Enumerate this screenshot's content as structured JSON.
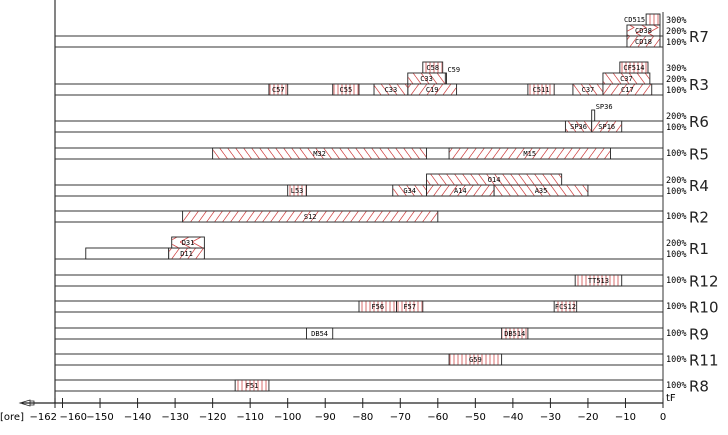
{
  "chart_data": {
    "type": "gantt",
    "x_unit_label": "[ore]",
    "x_end_label": "tF",
    "xlim": [
      -162,
      0
    ],
    "x_ticks": [
      -162,
      -160,
      -150,
      -140,
      -130,
      -120,
      -110,
      -100,
      -90,
      -80,
      -70,
      -60,
      -50,
      -40,
      -30,
      -20,
      -10,
      0
    ],
    "hatch_color": "#d04848",
    "rows": [
      {
        "name": "R7",
        "levels": [
          "100%",
          "200%",
          "300%"
        ]
      },
      {
        "name": "R3",
        "levels": [
          "100%",
          "200%",
          "300%"
        ]
      },
      {
        "name": "R6",
        "levels": [
          "100%",
          "200%"
        ]
      },
      {
        "name": "R5",
        "levels": [
          "100%"
        ]
      },
      {
        "name": "R4",
        "levels": [
          "100%",
          "200%"
        ]
      },
      {
        "name": "R2",
        "levels": [
          "100%"
        ]
      },
      {
        "name": "R1",
        "levels": [
          "100%",
          "200%"
        ]
      },
      {
        "name": "R12",
        "levels": [
          "100%"
        ]
      },
      {
        "name": "R10",
        "levels": [
          "100%"
        ]
      },
      {
        "name": "R9",
        "levels": [
          "100%"
        ]
      },
      {
        "name": "R11",
        "levels": [
          "100%"
        ]
      },
      {
        "name": "R8",
        "levels": [
          "100%"
        ]
      }
    ],
    "bars": [
      {
        "row": "R7",
        "level": 3,
        "start": -4.5,
        "end": -0.8,
        "label": "CD515",
        "hatch": "vertical",
        "label_outside": true
      },
      {
        "row": "R7",
        "level": 2,
        "start": -9.6,
        "end": -0.8,
        "label": "CD38",
        "hatch": "chevron"
      },
      {
        "row": "R7",
        "level": 1,
        "start": -9.6,
        "end": -0.8,
        "label": "CD18",
        "hatch": "diag-up"
      },
      {
        "row": "R3",
        "level": 3,
        "start": -64,
        "end": -58.7,
        "label": "C58",
        "hatch": "vertical"
      },
      {
        "row": "R3",
        "level": 2,
        "start": -58.3,
        "end": -57.7,
        "label": "C59",
        "hatch": "none",
        "label_outside": true
      },
      {
        "row": "R3",
        "level": 2,
        "start": -68,
        "end": -58,
        "label": "C33",
        "hatch": "diag-down"
      },
      {
        "row": "R3",
        "level": 1,
        "start": -68,
        "end": -55,
        "label": "C19",
        "hatch": "diag-up"
      },
      {
        "row": "R3",
        "level": 1,
        "start": -77,
        "end": -68,
        "label": "C33",
        "hatch": "diag-down"
      },
      {
        "row": "R3",
        "level": 1,
        "start": -88,
        "end": -81,
        "label": "C55",
        "hatch": "vertical"
      },
      {
        "row": "R3",
        "level": 1,
        "start": -105,
        "end": -100,
        "label": "C57",
        "hatch": "vertical"
      },
      {
        "row": "R3",
        "level": 1,
        "start": -36,
        "end": -29,
        "label": "C511",
        "hatch": "vertical"
      },
      {
        "row": "R3",
        "level": 1,
        "start": -24,
        "end": -16,
        "label": "C37",
        "hatch": "diag-down"
      },
      {
        "row": "R3",
        "level": 1,
        "start": -16,
        "end": -3,
        "label": "C17",
        "hatch": "diag-up"
      },
      {
        "row": "R3",
        "level": 2,
        "start": -16,
        "end": -3.5,
        "label": "C37",
        "hatch": "diag-down"
      },
      {
        "row": "R3",
        "level": 3,
        "start": -11.5,
        "end": -4,
        "label": "CF514",
        "hatch": "vertical"
      },
      {
        "row": "R6",
        "level": 1,
        "start": -26,
        "end": -19,
        "label": "SP36",
        "hatch": "diag-down"
      },
      {
        "row": "R6",
        "level": 1,
        "start": -19,
        "end": -11,
        "label": "SP16",
        "hatch": "diag-up"
      },
      {
        "row": "R6",
        "level": 2,
        "start": -19,
        "end": -18.2,
        "label": "SP36",
        "hatch": "none",
        "label_outside": true
      },
      {
        "row": "R5",
        "level": 1,
        "start": -120,
        "end": -63,
        "label": "M32",
        "hatch": "diag-down"
      },
      {
        "row": "R5",
        "level": 1,
        "start": -57,
        "end": -14,
        "label": "M15",
        "hatch": "diag-up"
      },
      {
        "row": "R4",
        "level": 1,
        "start": -100,
        "end": -95,
        "label": "L53",
        "hatch": "vertical"
      },
      {
        "row": "R4",
        "level": 1,
        "start": -72,
        "end": -63,
        "label": "G34",
        "hatch": "diag-down"
      },
      {
        "row": "R4",
        "level": 1,
        "start": -63,
        "end": -45,
        "label": "A14",
        "hatch": "diag-up"
      },
      {
        "row": "R4",
        "level": 1,
        "start": -45,
        "end": -20,
        "label": "A35",
        "hatch": "diag-down"
      },
      {
        "row": "R4",
        "level": 2,
        "start": -63,
        "end": -27,
        "label": "O14",
        "hatch": "diag-down"
      },
      {
        "row": "R2",
        "level": 1,
        "start": -128,
        "end": -60,
        "label": "S12",
        "hatch": "diag-up"
      },
      {
        "row": "R1",
        "level": 1,
        "start": -153.8,
        "end": -131.7,
        "label": "",
        "hatch": "none"
      },
      {
        "row": "R1",
        "level": 1,
        "start": -131.7,
        "end": -122.2,
        "label": "D11",
        "hatch": "diag-up"
      },
      {
        "row": "R1",
        "level": 2,
        "start": -130.9,
        "end": -122.2,
        "label": "D31",
        "hatch": "chevron"
      },
      {
        "row": "R12",
        "level": 1,
        "start": -23.4,
        "end": -11,
        "label": "TT513",
        "hatch": "vertical"
      },
      {
        "row": "R10",
        "level": 1,
        "start": -81,
        "end": -71,
        "label": "F56",
        "hatch": "vertical"
      },
      {
        "row": "R10",
        "level": 1,
        "start": -71,
        "end": -64,
        "label": "F57",
        "hatch": "vertical"
      },
      {
        "row": "R10",
        "level": 1,
        "start": -29,
        "end": -23,
        "label": "FCS12",
        "hatch": "vertical"
      },
      {
        "row": "R9",
        "level": 1,
        "start": -95,
        "end": -88,
        "label": "DB54",
        "hatch": "none"
      },
      {
        "row": "R9",
        "level": 1,
        "start": -43,
        "end": -36,
        "label": "DB514",
        "hatch": "vertical"
      },
      {
        "row": "R11",
        "level": 1,
        "start": -57,
        "end": -43,
        "label": "G59",
        "hatch": "vertical"
      },
      {
        "row": "R8",
        "level": 1,
        "start": -114,
        "end": -105,
        "label": "F51",
        "hatch": "vertical"
      }
    ]
  }
}
